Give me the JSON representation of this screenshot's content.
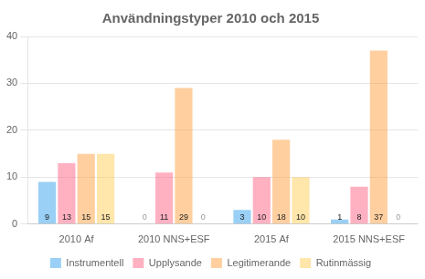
{
  "chart_data": {
    "type": "bar",
    "title": "Användningstyper 2010 och 2015",
    "categories": [
      "2010 Af",
      "2010 NNS+ESF",
      "2015 Af",
      "2015 NNS+ESF"
    ],
    "series": [
      {
        "name": "Instrumentell",
        "values": [
          9,
          0,
          3,
          1
        ]
      },
      {
        "name": "Upplysande",
        "values": [
          13,
          11,
          10,
          8
        ]
      },
      {
        "name": "Legitimerande",
        "values": [
          15,
          29,
          18,
          37
        ]
      },
      {
        "name": "Rutinmässig",
        "values": [
          15,
          0,
          10,
          0
        ]
      }
    ],
    "ylim": [
      0,
      40
    ],
    "yticks": [
      0,
      10,
      20,
      30,
      40
    ],
    "grid": true,
    "legend": "bottom",
    "data_labels": true
  }
}
